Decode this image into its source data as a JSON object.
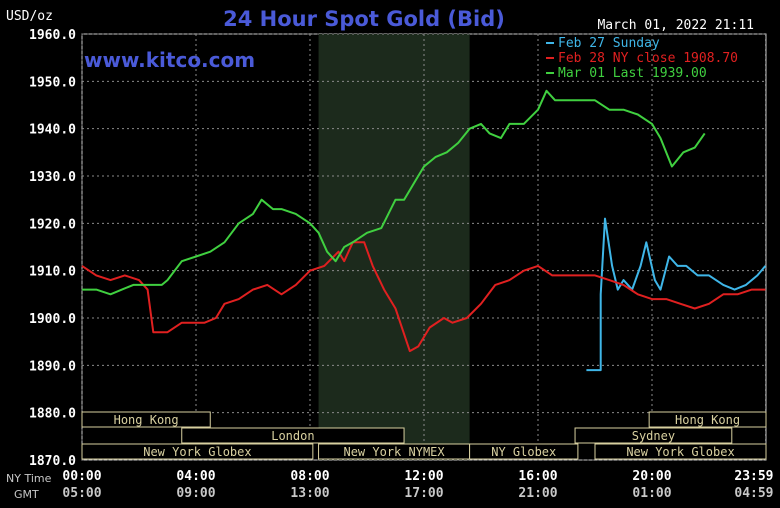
{
  "chart_data": {
    "type": "line",
    "title": "24 Hour Spot Gold (Bid)",
    "unit_label": "USD/oz",
    "datestamp": "March 01, 2022 21:11",
    "watermark": "www.kitco.com",
    "ylim": [
      1870,
      1960
    ],
    "y_ticks": [
      "1960.0",
      "1950.0",
      "1940.0",
      "1930.0",
      "1920.0",
      "1910.0",
      "1900.0",
      "1890.0",
      "1880.0",
      "1870.0"
    ],
    "y_tick_values": [
      1960,
      1950,
      1940,
      1930,
      1920,
      1910,
      1900,
      1890,
      1880,
      1870
    ],
    "x_range_hours": [
      0,
      24
    ],
    "x_tick_hours": [
      0,
      4,
      8,
      12,
      16,
      20,
      23.9833
    ],
    "x_row_labels": [
      "NY Time",
      "GMT"
    ],
    "x_ticks_ny": [
      "00:00",
      "04:00",
      "08:00",
      "12:00",
      "16:00",
      "20:00",
      "23:59"
    ],
    "x_ticks_gmt": [
      "05:00",
      "09:00",
      "13:00",
      "17:00",
      "21:00",
      "01:00",
      "04:59"
    ],
    "legend": [
      {
        "label": "Feb 27 Sunday",
        "color": "#3fb6e8"
      },
      {
        "label": "Feb 28 NY close 1908.70",
        "color": "#e02020"
      },
      {
        "label": "Mar 01 Last 1939.00",
        "color": "#40d040"
      }
    ],
    "shaded_window_hours": [
      8.3,
      13.6
    ],
    "sessions_row1": [
      {
        "label": "Hong Kong",
        "start": 0,
        "end": 4.5
      },
      {
        "label": "Hong Kong",
        "start": 19.9,
        "end": 24
      }
    ],
    "sessions_row2": [
      {
        "label": "London",
        "start": 3.5,
        "end": 11.3
      },
      {
        "label": "Sydney",
        "start": 17.3,
        "end": 22.8
      }
    ],
    "sessions_row3": [
      {
        "label": "New York Globex",
        "start": 0,
        "end": 8.1
      },
      {
        "label": "New York NYMEX",
        "start": 8.3,
        "end": 13.6
      },
      {
        "label": "NY Globex",
        "start": 13.6,
        "end": 17.4
      },
      {
        "label": "New York Globex",
        "start": 18,
        "end": 24
      }
    ],
    "series": [
      {
        "name": "Feb 27 Sunday",
        "color": "#3fb6e8",
        "x": [
          17.7,
          18.2,
          18.2,
          18.35,
          18.6,
          18.8,
          19.0,
          19.3,
          19.6,
          19.8,
          20.1,
          20.3,
          20.6,
          20.9,
          21.2,
          21.6,
          22.0,
          22.5,
          22.9,
          23.3,
          23.7,
          23.98
        ],
        "y": [
          1889,
          1889,
          1905,
          1921,
          1911,
          1906,
          1908,
          1906,
          1911,
          1916,
          1908,
          1906,
          1913,
          1911,
          1911,
          1909,
          1909,
          1907,
          1906,
          1907,
          1909,
          1911
        ]
      },
      {
        "name": "Feb 28 NY close 1908.70",
        "color": "#e02020",
        "x": [
          0,
          0.5,
          1,
          1.5,
          2,
          2.3,
          2.5,
          2.8,
          3,
          3.5,
          4,
          4.3,
          4.7,
          5,
          5.5,
          6,
          6.5,
          7,
          7.5,
          8,
          8.5,
          9,
          9.2,
          9.5,
          9.9,
          10.2,
          10.6,
          11,
          11.5,
          11.8,
          12.2,
          12.7,
          13,
          13.5,
          14,
          14.5,
          15,
          15.5,
          16,
          16.5,
          17,
          17.5,
          18,
          18.5,
          19,
          19.5,
          20,
          20.5,
          21,
          21.5,
          22,
          22.5,
          23,
          23.5,
          23.98
        ],
        "y": [
          1911,
          1909,
          1908,
          1909,
          1908,
          1906,
          1897,
          1897,
          1897,
          1899,
          1899,
          1899,
          1900,
          1903,
          1904,
          1906,
          1907,
          1905,
          1907,
          1910,
          1911,
          1914,
          1912,
          1916,
          1916,
          1911,
          1906,
          1902,
          1893,
          1894,
          1898,
          1900,
          1899,
          1900,
          1903,
          1907,
          1908,
          1910,
          1911,
          1909,
          1909,
          1909,
          1909,
          1908,
          1907,
          1905,
          1904,
          1904,
          1903,
          1902,
          1903,
          1905,
          1905,
          1906,
          1906
        ]
      },
      {
        "name": "Mar 01 Last 1939.00",
        "color": "#40d040",
        "x": [
          0,
          0.5,
          1,
          1.4,
          1.8,
          2.3,
          2.8,
          3,
          3.5,
          4,
          4.5,
          5,
          5.5,
          6,
          6.3,
          6.7,
          7,
          7.5,
          8,
          8.3,
          8.6,
          8.9,
          9.2,
          9.5,
          10,
          10.5,
          11,
          11.3,
          11.7,
          12,
          12.4,
          12.8,
          13.2,
          13.6,
          14,
          14.3,
          14.7,
          15,
          15.5,
          16,
          16.3,
          16.6,
          17,
          17.5,
          18,
          18.5,
          19,
          19.5,
          20,
          20.3,
          20.7,
          21.1,
          21.5,
          21.85
        ],
        "y": [
          1906,
          1906,
          1905,
          1906,
          1907,
          1907,
          1907,
          1908,
          1912,
          1913,
          1914,
          1916,
          1920,
          1922,
          1925,
          1923,
          1923,
          1922,
          1920,
          1918,
          1914,
          1912,
          1915,
          1916,
          1918,
          1919,
          1925,
          1925,
          1929,
          1932,
          1934,
          1935,
          1937,
          1940,
          1941,
          1939,
          1938,
          1941,
          1941,
          1944,
          1948,
          1946,
          1946,
          1946,
          1946,
          1944,
          1944,
          1943,
          1941,
          1938,
          1932,
          1935,
          1936,
          1939
        ]
      }
    ]
  }
}
